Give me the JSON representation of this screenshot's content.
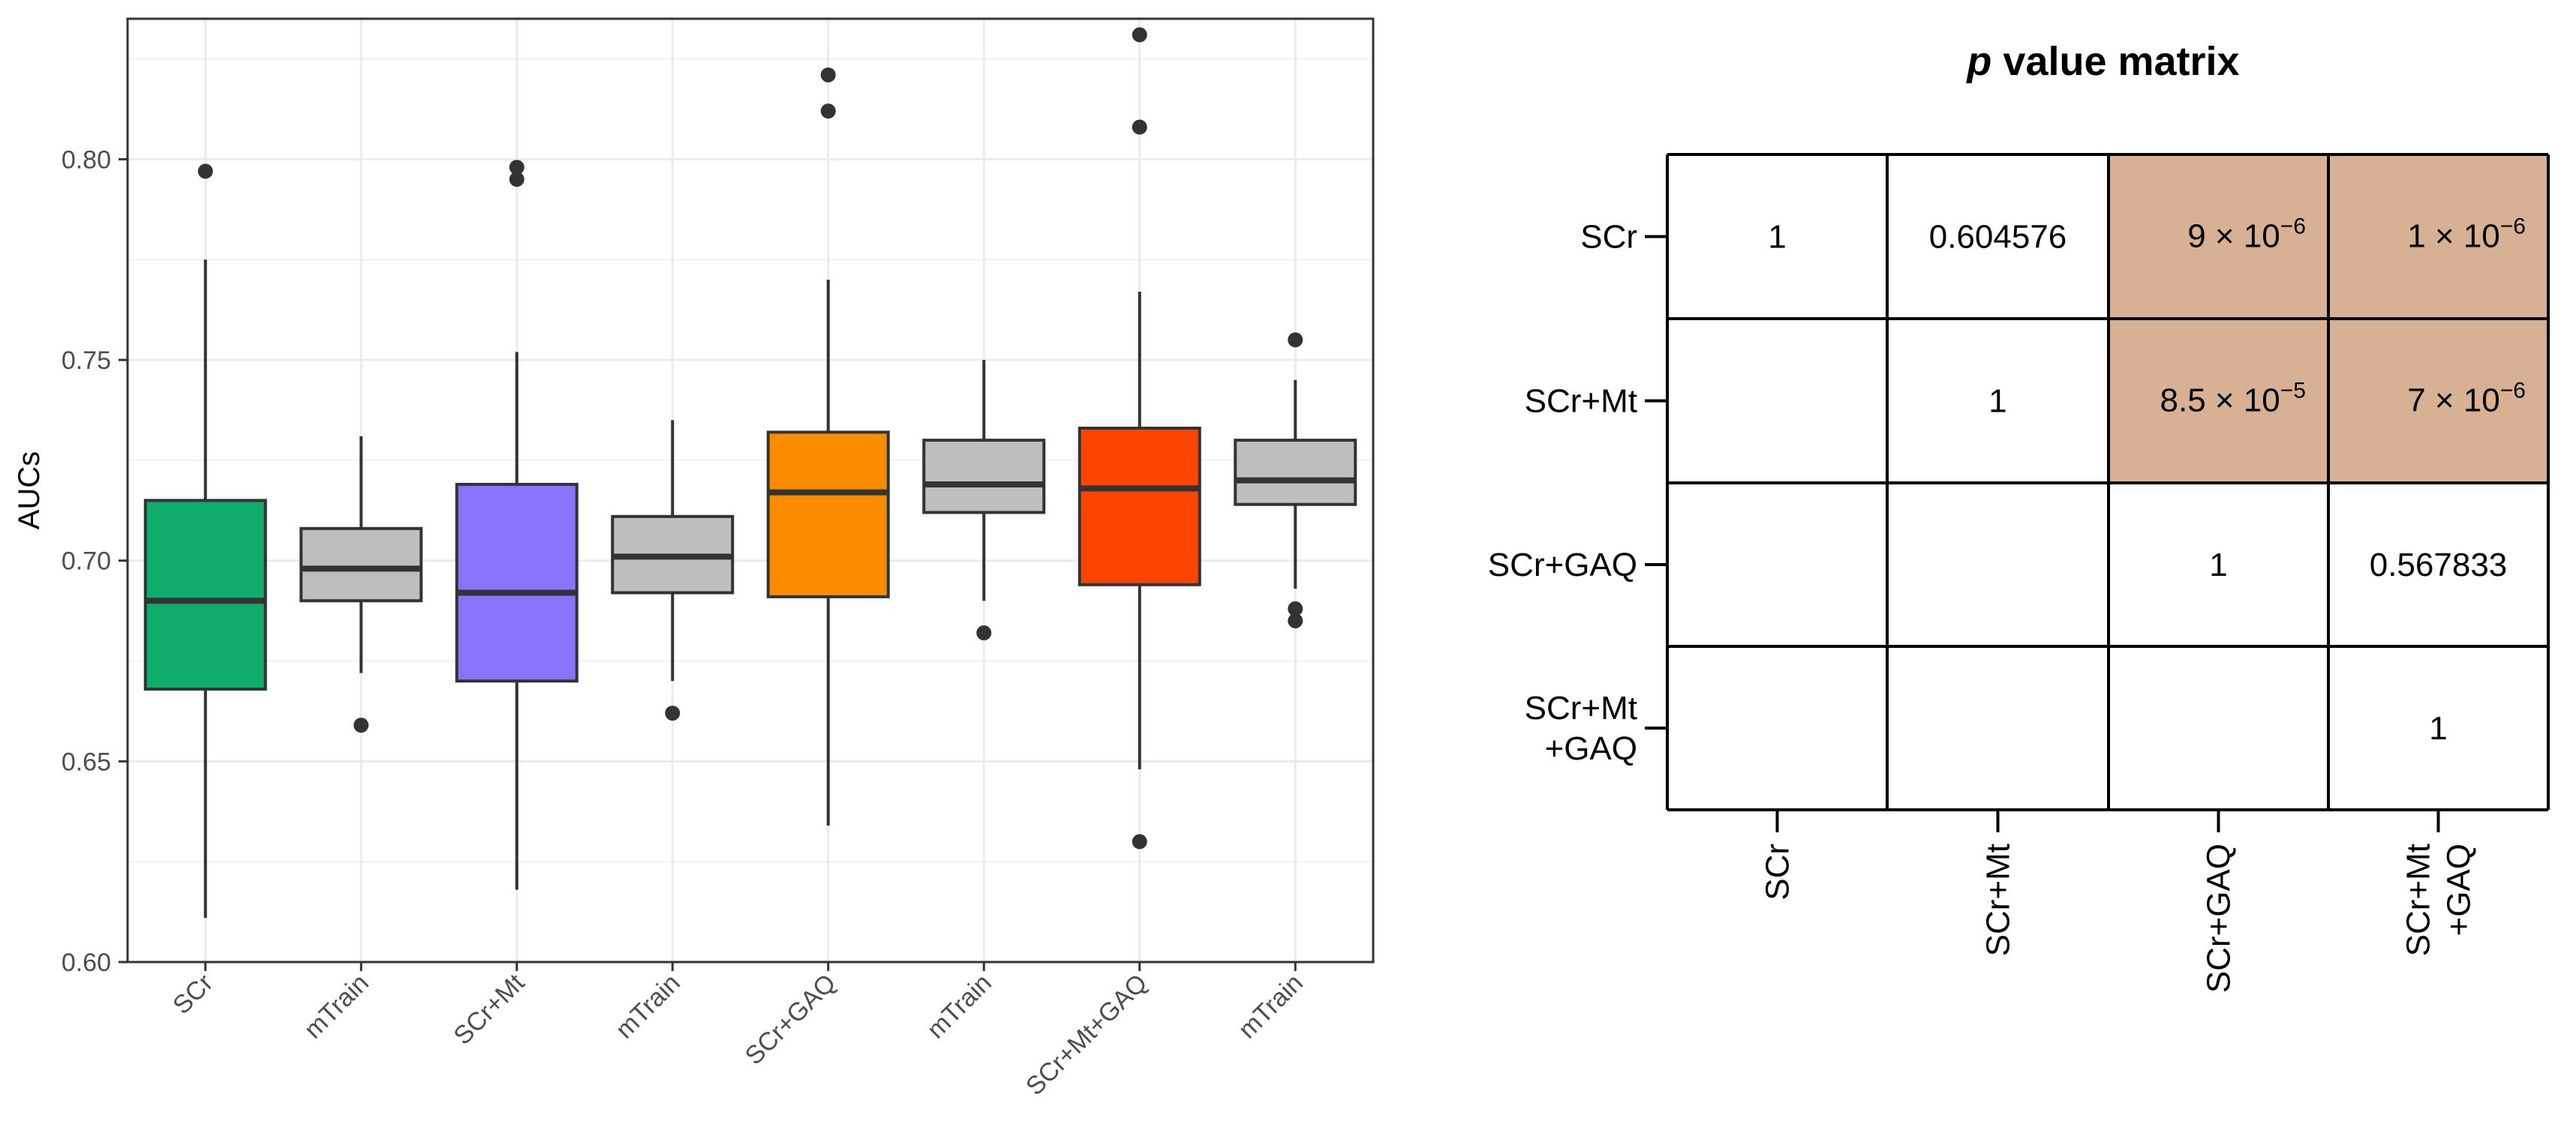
{
  "chart_data": [
    {
      "type": "box",
      "title": "",
      "xlabel": "",
      "ylabel": "AUCs",
      "ylim": [
        0.6,
        0.835
      ],
      "yticks": [
        0.6,
        0.65,
        0.7,
        0.75,
        0.8
      ],
      "ytick_labels": [
        "0.60",
        "0.65",
        "0.70",
        "0.75",
        "0.80"
      ],
      "grid": true,
      "categories": [
        "SCr",
        "mTrain",
        "SCr+Mt",
        "mTrain",
        "SCr+GAQ",
        "mTrain",
        "SCr+Mt+GAQ",
        "mTrain"
      ],
      "boxes": [
        {
          "label": "SCr",
          "color": "#0fac6e",
          "whisker_low": 0.611,
          "q1": 0.668,
          "median": 0.69,
          "q3": 0.715,
          "whisker_high": 0.775,
          "outliers": [
            0.797
          ]
        },
        {
          "label": "mTrain",
          "color": "#bebebe",
          "whisker_low": 0.672,
          "q1": 0.69,
          "median": 0.698,
          "q3": 0.708,
          "whisker_high": 0.731,
          "outliers": [
            0.659
          ]
        },
        {
          "label": "SCr+Mt",
          "color": "#8a72fa",
          "whisker_low": 0.618,
          "q1": 0.67,
          "median": 0.692,
          "q3": 0.719,
          "whisker_high": 0.752,
          "outliers": [
            0.798,
            0.795
          ]
        },
        {
          "label": "mTrain",
          "color": "#bebebe",
          "whisker_low": 0.67,
          "q1": 0.692,
          "median": 0.701,
          "q3": 0.711,
          "whisker_high": 0.735,
          "outliers": [
            0.662
          ]
        },
        {
          "label": "SCr+GAQ",
          "color": "#fb8c00",
          "whisker_low": 0.634,
          "q1": 0.691,
          "median": 0.717,
          "q3": 0.732,
          "whisker_high": 0.77,
          "outliers": [
            0.821,
            0.812
          ]
        },
        {
          "label": "mTrain",
          "color": "#bebebe",
          "whisker_low": 0.69,
          "q1": 0.712,
          "median": 0.719,
          "q3": 0.73,
          "whisker_high": 0.75,
          "outliers": [
            0.682
          ]
        },
        {
          "label": "SCr+Mt+GAQ",
          "color": "#fb4500",
          "whisker_low": 0.648,
          "q1": 0.694,
          "median": 0.718,
          "q3": 0.733,
          "whisker_high": 0.767,
          "outliers": [
            0.831,
            0.808,
            0.63
          ]
        },
        {
          "label": "mTrain",
          "color": "#bebebe",
          "whisker_low": 0.693,
          "q1": 0.714,
          "median": 0.72,
          "q3": 0.73,
          "whisker_high": 0.745,
          "outliers": [
            0.755,
            0.688,
            0.685
          ]
        }
      ]
    },
    {
      "type": "table",
      "title_prefix": "p",
      "title_suffix": " value matrix",
      "row_labels": [
        [
          "SCr"
        ],
        [
          "SCr+Mt"
        ],
        [
          "SCr+GAQ"
        ],
        [
          "SCr+Mt",
          "+GAQ"
        ]
      ],
      "col_labels": [
        [
          "SCr"
        ],
        [
          "SCr+Mt"
        ],
        [
          "SCr+GAQ"
        ],
        [
          "SCr+Mt",
          "+GAQ"
        ]
      ],
      "highlight_color": "#d8b093",
      "cells": [
        [
          {
            "text": "1"
          },
          {
            "text": "0.604576"
          },
          {
            "base": "9 × 10",
            "exp": "−6",
            "highlight": true
          },
          {
            "base": "1 × 10",
            "exp": "−6",
            "highlight": true
          }
        ],
        [
          {
            "text": ""
          },
          {
            "text": "1"
          },
          {
            "base": "8.5 × 10",
            "exp": "−5",
            "highlight": true
          },
          {
            "base": "7 × 10",
            "exp": "−6",
            "highlight": true
          }
        ],
        [
          {
            "text": ""
          },
          {
            "text": ""
          },
          {
            "text": "1"
          },
          {
            "text": "0.567833"
          }
        ],
        [
          {
            "text": ""
          },
          {
            "text": ""
          },
          {
            "text": ""
          },
          {
            "text": "1"
          }
        ]
      ]
    }
  ]
}
